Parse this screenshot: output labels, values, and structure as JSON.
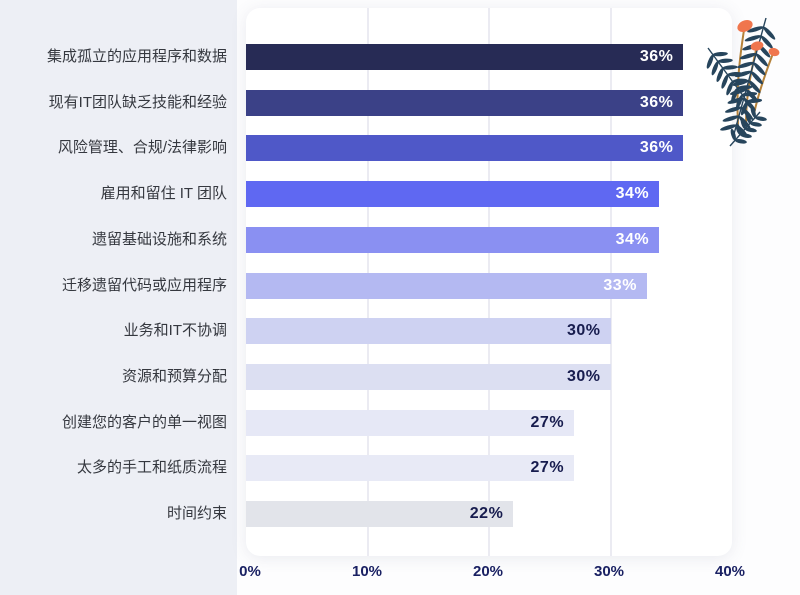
{
  "chart_data": {
    "type": "bar",
    "orientation": "horizontal",
    "title": "",
    "categories": [
      "集成孤立的应用程序和数据",
      "现有IT团队缺乏技能和经验",
      "风险管理、合规/法律影响",
      "雇用和留住 IT 团队",
      "遗留基础设施和系统",
      "迁移遗留代码或应用程序",
      "业务和IT不协调",
      "资源和预算分配",
      "创建您的客户的单一视图",
      "太多的手工和纸质流程",
      "时间约束"
    ],
    "values": [
      36,
      36,
      36,
      34,
      34,
      33,
      30,
      30,
      27,
      27,
      22
    ],
    "value_labels": [
      "36%",
      "36%",
      "36%",
      "34%",
      "34%",
      "33%",
      "30%",
      "30%",
      "27%",
      "27%",
      "22%"
    ],
    "bar_colors": [
      "#272b55",
      "#3b4187",
      "#4f58c8",
      "#5f68f2",
      "#8a90f2",
      "#b4b9f2",
      "#ced2f2",
      "#dcdff2",
      "#e6e8f6",
      "#e8eaf6",
      "#e2e4ea"
    ],
    "value_text_colors": [
      "#ffffff",
      "#ffffff",
      "#ffffff",
      "#ffffff",
      "#ffffff",
      "#ffffff",
      "#171c4e",
      "#171c4e",
      "#171c4e",
      "#171c4e",
      "#171c4e"
    ],
    "x_ticks": [
      "0%",
      "10%",
      "20%",
      "30%",
      "40%"
    ],
    "xlim": [
      0,
      40
    ],
    "grid": true,
    "legend": false
  },
  "colors": {
    "page_left_bg": "#edeff5",
    "page_right_bg": "#fdfdfe",
    "card_bg": "#ffffff",
    "gridline": "#ebebf2",
    "category_label": "#35383f",
    "axis_label": "#1a2163",
    "plant_leaf": "#27455c",
    "plant_stem": "#b5823a",
    "plant_berry": "#f0764d"
  }
}
